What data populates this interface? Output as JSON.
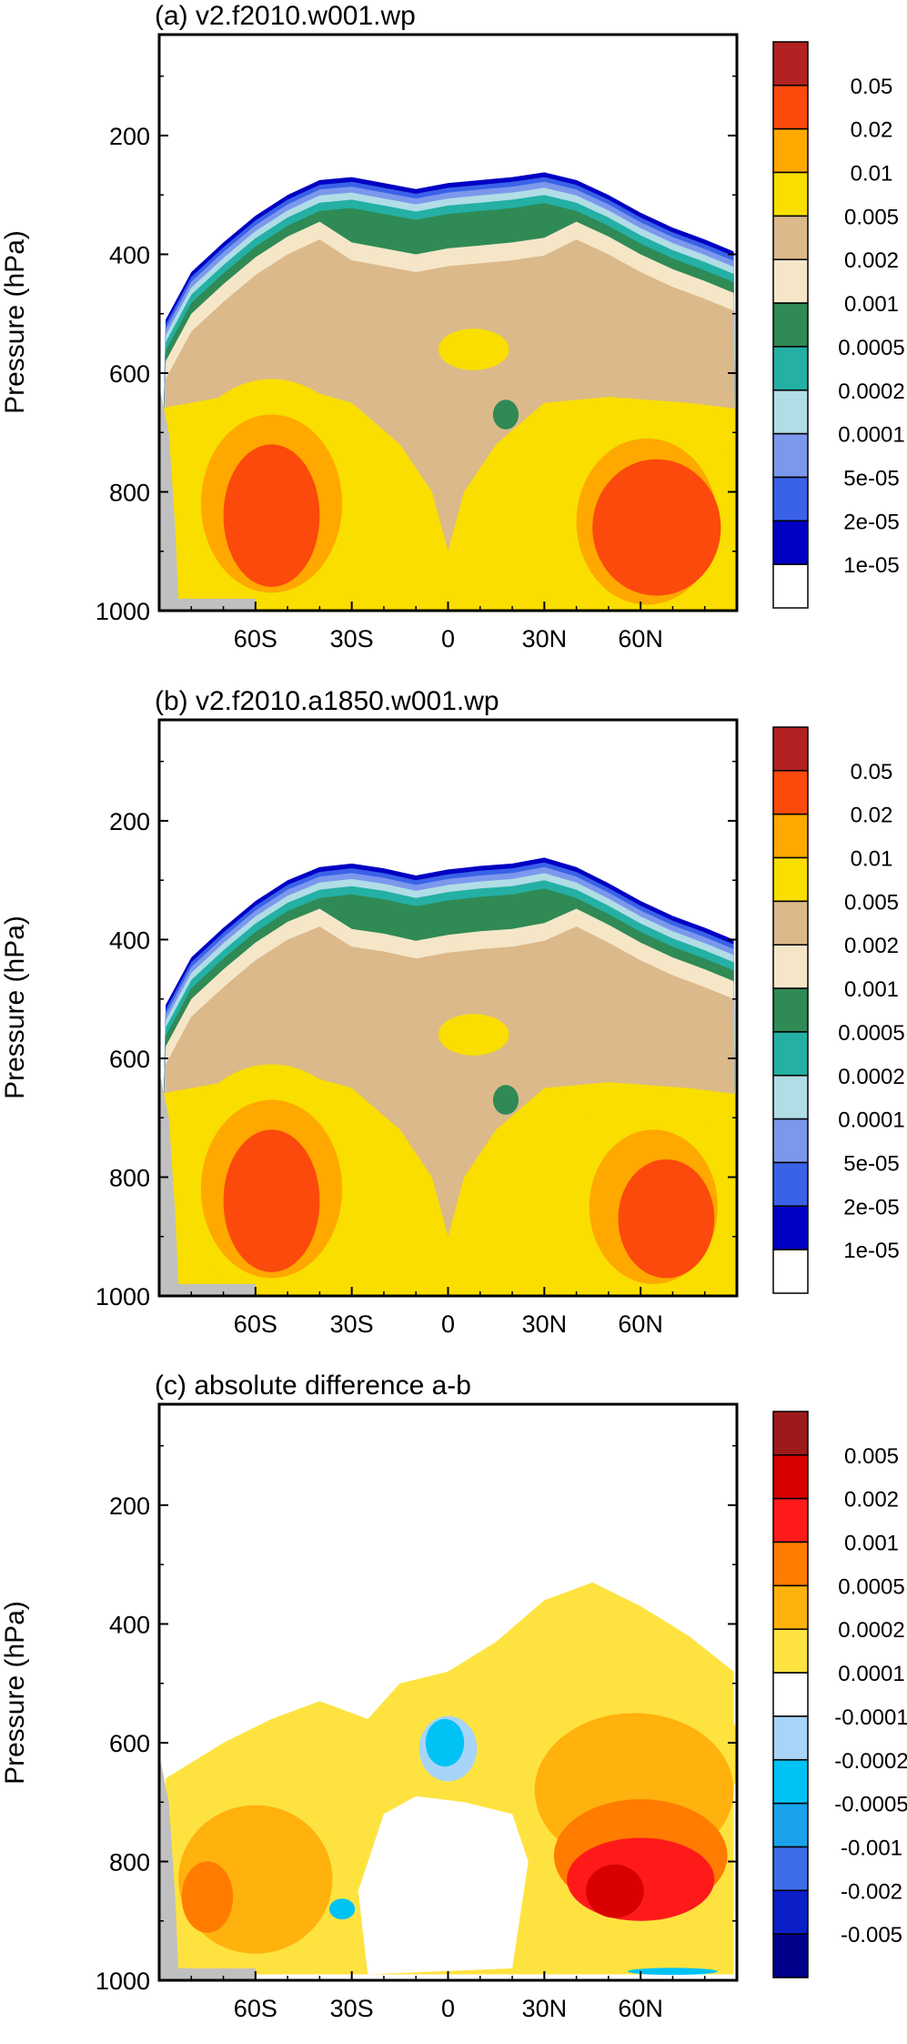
{
  "figure": {
    "panels": [
      {
        "title": "(a) v2.f2010.w001.wp"
      },
      {
        "title": "(b) v2.f2010.a1850.w001.wp"
      },
      {
        "title": "(c) absolute difference a-b"
      }
    ]
  },
  "chart_data": [
    {
      "type": "heatmap",
      "title": "(a) v2.f2010.w001.wp",
      "xlabel": "",
      "ylabel": "Pressure (hPa)",
      "x_ticks": [
        "60S",
        "30S",
        "0",
        "30N",
        "60N"
      ],
      "x_tick_values": [
        -60,
        -30,
        0,
        30,
        60
      ],
      "xlim": [
        -90,
        90
      ],
      "y_ticks": [
        "200",
        "400",
        "600",
        "800",
        "1000"
      ],
      "y_tick_values": [
        200,
        400,
        600,
        800,
        1000
      ],
      "ylim": [
        1000,
        30
      ],
      "colorbar": {
        "labels": [
          "1e-05",
          "2e-05",
          "5e-05",
          "0.0001",
          "0.0002",
          "0.0005",
          "0.001",
          "0.002",
          "0.005",
          "0.01",
          "0.02",
          "0.05"
        ],
        "colors": [
          "#ffffff",
          "#0000c4",
          "#3a62e8",
          "#7c98ec",
          "#b0dde6",
          "#24b0a4",
          "#2f8a55",
          "#f5e6c8",
          "#dcb98a",
          "#f9de00",
          "#fea800",
          "#fb4a0c",
          "#b22222"
        ]
      },
      "missing_color": "#c0c0c0",
      "top_boundary_hPa": [
        [
          -88,
          510
        ],
        [
          -80,
          430
        ],
        [
          -70,
          380
        ],
        [
          -60,
          335
        ],
        [
          -50,
          300
        ],
        [
          -40,
          275
        ],
        [
          -30,
          270
        ],
        [
          -20,
          280
        ],
        [
          -10,
          290
        ],
        [
          0,
          280
        ],
        [
          10,
          275
        ],
        [
          20,
          270
        ],
        [
          30,
          262
        ],
        [
          40,
          275
        ],
        [
          50,
          300
        ],
        [
          60,
          330
        ],
        [
          70,
          355
        ],
        [
          80,
          375
        ],
        [
          89,
          395
        ]
      ],
      "features": [
        {
          "level": "0.005-0.01",
          "center": [
            -55,
            800
          ],
          "extent": [
            30,
            380
          ]
        },
        {
          "level": "0.01-0.02",
          "center": [
            -55,
            820
          ],
          "extent": [
            22,
            300
          ]
        },
        {
          "level": "0.02-0.05",
          "center": [
            -55,
            840
          ],
          "extent": [
            15,
            240
          ]
        },
        {
          "level": "0.005-0.01",
          "center": [
            62,
            830
          ],
          "extent": [
            28,
            350
          ]
        },
        {
          "level": "0.01-0.02",
          "center": [
            62,
            850
          ],
          "extent": [
            22,
            280
          ]
        },
        {
          "level": "0.02-0.05",
          "center": [
            65,
            860
          ],
          "extent": [
            20,
            230
          ]
        },
        {
          "level": "0.005-0.01",
          "center": [
            8,
            560
          ],
          "extent": [
            11,
            70
          ]
        },
        {
          "level": "0.0005-0.001",
          "center": [
            18,
            670
          ],
          "extent": [
            4,
            50
          ]
        }
      ]
    },
    {
      "type": "heatmap",
      "title": "(b) v2.f2010.a1850.w001.wp",
      "xlabel": "",
      "ylabel": "Pressure (hPa)",
      "x_ticks": [
        "60S",
        "30S",
        "0",
        "30N",
        "60N"
      ],
      "x_tick_values": [
        -60,
        -30,
        0,
        30,
        60
      ],
      "xlim": [
        -90,
        90
      ],
      "y_ticks": [
        "200",
        "400",
        "600",
        "800",
        "1000"
      ],
      "y_tick_values": [
        200,
        400,
        600,
        800,
        1000
      ],
      "ylim": [
        1000,
        30
      ],
      "colorbar": {
        "labels": [
          "1e-05",
          "2e-05",
          "5e-05",
          "0.0001",
          "0.0002",
          "0.0005",
          "0.001",
          "0.002",
          "0.005",
          "0.01",
          "0.02",
          "0.05"
        ],
        "colors": [
          "#ffffff",
          "#0000c4",
          "#3a62e8",
          "#7c98ec",
          "#b0dde6",
          "#24b0a4",
          "#2f8a55",
          "#f5e6c8",
          "#dcb98a",
          "#f9de00",
          "#fea800",
          "#fb4a0c",
          "#b22222"
        ]
      },
      "missing_color": "#c0c0c0",
      "top_boundary_hPa": [
        [
          -88,
          510
        ],
        [
          -80,
          430
        ],
        [
          -70,
          380
        ],
        [
          -60,
          335
        ],
        [
          -50,
          300
        ],
        [
          -40,
          278
        ],
        [
          -30,
          272
        ],
        [
          -20,
          280
        ],
        [
          -10,
          292
        ],
        [
          0,
          282
        ],
        [
          10,
          276
        ],
        [
          20,
          272
        ],
        [
          30,
          262
        ],
        [
          40,
          278
        ],
        [
          50,
          305
        ],
        [
          60,
          335
        ],
        [
          70,
          360
        ],
        [
          80,
          380
        ],
        [
          89,
          400
        ]
      ],
      "features": [
        {
          "level": "0.005-0.01",
          "center": [
            -55,
            800
          ],
          "extent": [
            30,
            380
          ]
        },
        {
          "level": "0.01-0.02",
          "center": [
            -55,
            820
          ],
          "extent": [
            22,
            300
          ]
        },
        {
          "level": "0.02-0.05",
          "center": [
            -55,
            840
          ],
          "extent": [
            15,
            240
          ]
        },
        {
          "level": "0.005-0.01",
          "center": [
            62,
            830
          ],
          "extent": [
            28,
            330
          ]
        },
        {
          "level": "0.01-0.02",
          "center": [
            64,
            850
          ],
          "extent": [
            20,
            260
          ]
        },
        {
          "level": "0.02-0.05",
          "center": [
            68,
            870
          ],
          "extent": [
            15,
            200
          ]
        },
        {
          "level": "0.005-0.01",
          "center": [
            8,
            560
          ],
          "extent": [
            11,
            70
          ]
        },
        {
          "level": "0.0005-0.001",
          "center": [
            18,
            670
          ],
          "extent": [
            4,
            50
          ]
        }
      ]
    },
    {
      "type": "heatmap",
      "title": "(c) absolute difference a-b",
      "xlabel": "",
      "ylabel": "Pressure (hPa)",
      "x_ticks": [
        "60S",
        "30S",
        "0",
        "30N",
        "60N"
      ],
      "x_tick_values": [
        -60,
        -30,
        0,
        30,
        60
      ],
      "xlim": [
        -90,
        90
      ],
      "y_ticks": [
        "200",
        "400",
        "600",
        "800",
        "1000"
      ],
      "y_tick_values": [
        200,
        400,
        600,
        800,
        1000
      ],
      "ylim": [
        1000,
        30
      ],
      "colorbar": {
        "labels": [
          "-0.005",
          "-0.002",
          "-0.001",
          "-0.0005",
          "-0.0002",
          "-0.0001",
          "0.0001",
          "0.0002",
          "0.0005",
          "0.001",
          "0.002",
          "0.005"
        ],
        "colors": [
          "#00008b",
          "#0a1fc8",
          "#3d6ce8",
          "#1aa3ec",
          "#00c2f5",
          "#a7d4f7",
          "#ffffff",
          "#fee340",
          "#ffb10d",
          "#ff7c00",
          "#ff1a1a",
          "#d90000",
          "#9e1a1a"
        ]
      },
      "missing_color": "#c0c0c0",
      "features": [
        {
          "level": "0.0001-0.0002",
          "center": [
            -60,
            800
          ],
          "extent": [
            30,
            300
          ]
        },
        {
          "level": "0.0002-0.0005",
          "center": [
            -60,
            830
          ],
          "extent": [
            24,
            250
          ]
        },
        {
          "level": "0.0005-0.001",
          "center": [
            -75,
            860
          ],
          "extent": [
            8,
            120
          ]
        },
        {
          "level": "0.0001-0.0002",
          "center": [
            55,
            620
          ],
          "extent": [
            36,
            330
          ]
        },
        {
          "level": "0.0002-0.0005",
          "center": [
            58,
            680
          ],
          "extent": [
            31,
            260
          ]
        },
        {
          "level": "0.0005-0.001",
          "center": [
            60,
            790
          ],
          "extent": [
            27,
            190
          ]
        },
        {
          "level": "0.001-0.002",
          "center": [
            60,
            830
          ],
          "extent": [
            23,
            140
          ]
        },
        {
          "level": "0.002-0.005",
          "center": [
            52,
            850
          ],
          "extent": [
            9,
            90
          ]
        },
        {
          "level": "-0.0002--0.0001",
          "center": [
            0,
            610
          ],
          "extent": [
            9,
            110
          ]
        },
        {
          "level": "-0.0005--0.0002",
          "center": [
            -1,
            600
          ],
          "extent": [
            6,
            80
          ]
        },
        {
          "level": "-0.0005--0.0002",
          "center": [
            -33,
            880
          ],
          "extent": [
            4,
            35
          ]
        },
        {
          "level": "-0.0005--0.0002",
          "center": [
            70,
            985
          ],
          "extent": [
            14,
            12
          ]
        }
      ]
    }
  ]
}
